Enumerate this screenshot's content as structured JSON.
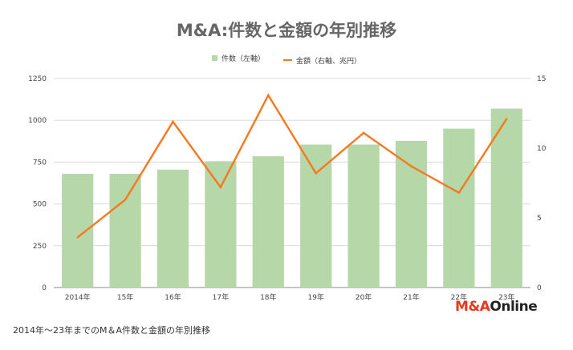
{
  "chart_data": {
    "type": "bar+line",
    "title": "M&A:件数と金額の年別推移",
    "categories": [
      "2014年",
      "15年",
      "16年",
      "17年",
      "18年",
      "19年",
      "20年",
      "21年",
      "22年",
      "23年"
    ],
    "series": [
      {
        "name": "件数（左軸）",
        "type": "bar",
        "axis": "left",
        "color": "#b6d7a8",
        "values": [
          680,
          680,
          705,
          755,
          785,
          855,
          855,
          877,
          950,
          1070
        ]
      },
      {
        "name": "金額（右軸、兆円）",
        "type": "line",
        "axis": "right",
        "color": "#f47920",
        "values": [
          3.6,
          6.3,
          11.9,
          7.2,
          13.8,
          8.2,
          11.1,
          8.7,
          6.8,
          12.1
        ]
      }
    ],
    "y_left": {
      "min": 0,
      "max": 1250,
      "ticks": [
        0,
        250,
        500,
        750,
        1000,
        1250
      ]
    },
    "y_right": {
      "min": 0,
      "max": 15,
      "ticks": [
        0,
        5,
        10,
        15
      ]
    },
    "legend_position": "top-center",
    "grid": true
  },
  "caption": "2014年～23年までのM＆A件数と金額の年別推移",
  "logo": {
    "prefix": "M&A",
    "suffix": "Online"
  }
}
